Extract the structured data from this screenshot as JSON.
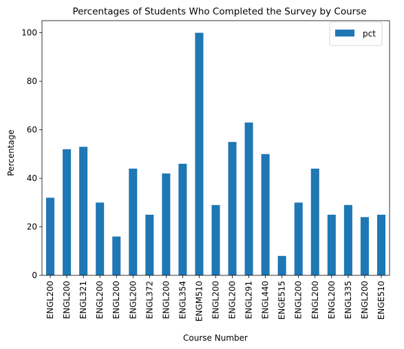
{
  "chart_data": {
    "type": "bar",
    "title": "Percentages of Students Who Completed the Survey by Course",
    "xlabel": "Course Number",
    "ylabel": "Percentage",
    "categories": [
      "ENGL200",
      "ENGL200",
      "ENGL321",
      "ENGL200",
      "ENGL200",
      "ENGL200",
      "ENGL372",
      "ENGL200",
      "ENGL354",
      "ENGM510",
      "ENGL200",
      "ENGL200",
      "ENGL291",
      "ENGL440",
      "ENGE515",
      "ENGL200",
      "ENGL200",
      "ENGL200",
      "ENGL335",
      "ENGL200",
      "ENGE510"
    ],
    "series": [
      {
        "name": "pct",
        "color": "#1f77b4",
        "values": [
          32,
          52,
          53,
          30,
          16,
          44,
          25,
          42,
          46,
          100,
          29,
          55,
          63,
          50,
          8,
          30,
          44,
          25,
          29,
          24,
          25
        ]
      }
    ],
    "ylim": [
      0,
      105
    ],
    "yticks": [
      0,
      20,
      40,
      60,
      80,
      100
    ],
    "grid": false,
    "legend_position": "top-right"
  }
}
